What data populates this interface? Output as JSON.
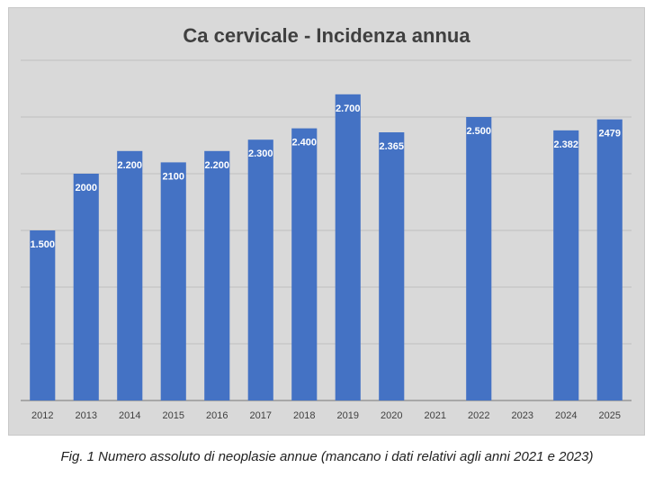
{
  "chart_data": {
    "type": "bar",
    "title": "Ca cervicale - Incidenza annua",
    "categories": [
      "2012",
      "2013",
      "2014",
      "2015",
      "2016",
      "2017",
      "2018",
      "2019",
      "2020",
      "2021",
      "2022",
      "2023",
      "2024",
      "2025"
    ],
    "values": [
      1500,
      2000,
      2200,
      2100,
      2200,
      2300,
      2400,
      2700,
      2365,
      null,
      2500,
      null,
      2382,
      2479
    ],
    "data_labels": [
      "1.500",
      "2000",
      "2.200",
      "2100",
      "2.200",
      "2.300",
      "2.400",
      "2.700",
      "2.365",
      "",
      "2.500",
      "",
      "2.382",
      "2479"
    ],
    "xlabel": "",
    "ylabel": "",
    "ylim": [
      0,
      3000
    ],
    "y_gridline_step": 500,
    "y_tick_labels_shown": false,
    "grid": true,
    "legend": "none",
    "bar_color": "#4472c4",
    "background_color": "#d9d9d9",
    "data_label_color": "#ffffff"
  },
  "caption": "Fig. 1 Numero assoluto di neoplasie annue (mancano i dati relativi agli anni 2021 e 2023)"
}
